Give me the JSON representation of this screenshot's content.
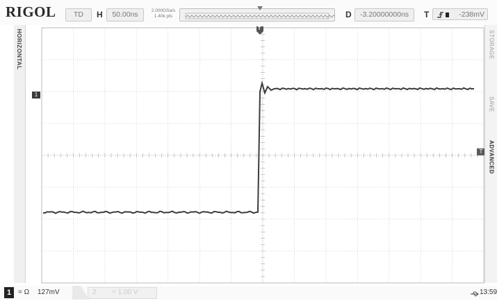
{
  "header": {
    "brand": "RIGOL",
    "run_status": "TD",
    "timebase_letter": "H",
    "timebase_value": "50.00ns",
    "sample_rate": "2.000GSa/s",
    "memory_depth": "1.40k pts",
    "delay_letter": "D",
    "delay_value": "-3.20000000ns",
    "trigger_letter": "T",
    "trigger_level": "-238mV"
  },
  "side_tabs": {
    "left_label": "HORIZONTAL",
    "right_labels": [
      "STORAGE",
      "SAVE",
      "ADVANCED"
    ]
  },
  "markers": {
    "ch1_marker": "1",
    "trigger_level_marker": "T",
    "trigger_position_marker": "T"
  },
  "footer": {
    "ch1_label": "1",
    "ch1_coupling": "= Ω",
    "ch1_scale": "127mV",
    "ch2_label": "2",
    "ch2_scale": "= 1.00 V",
    "usb_icon": "usb-icon",
    "time": "13:59"
  },
  "colors": {
    "trace": "#3b3b3b",
    "grid": "#b9b9b9",
    "grid_minor": "#c8c8c8"
  }
}
